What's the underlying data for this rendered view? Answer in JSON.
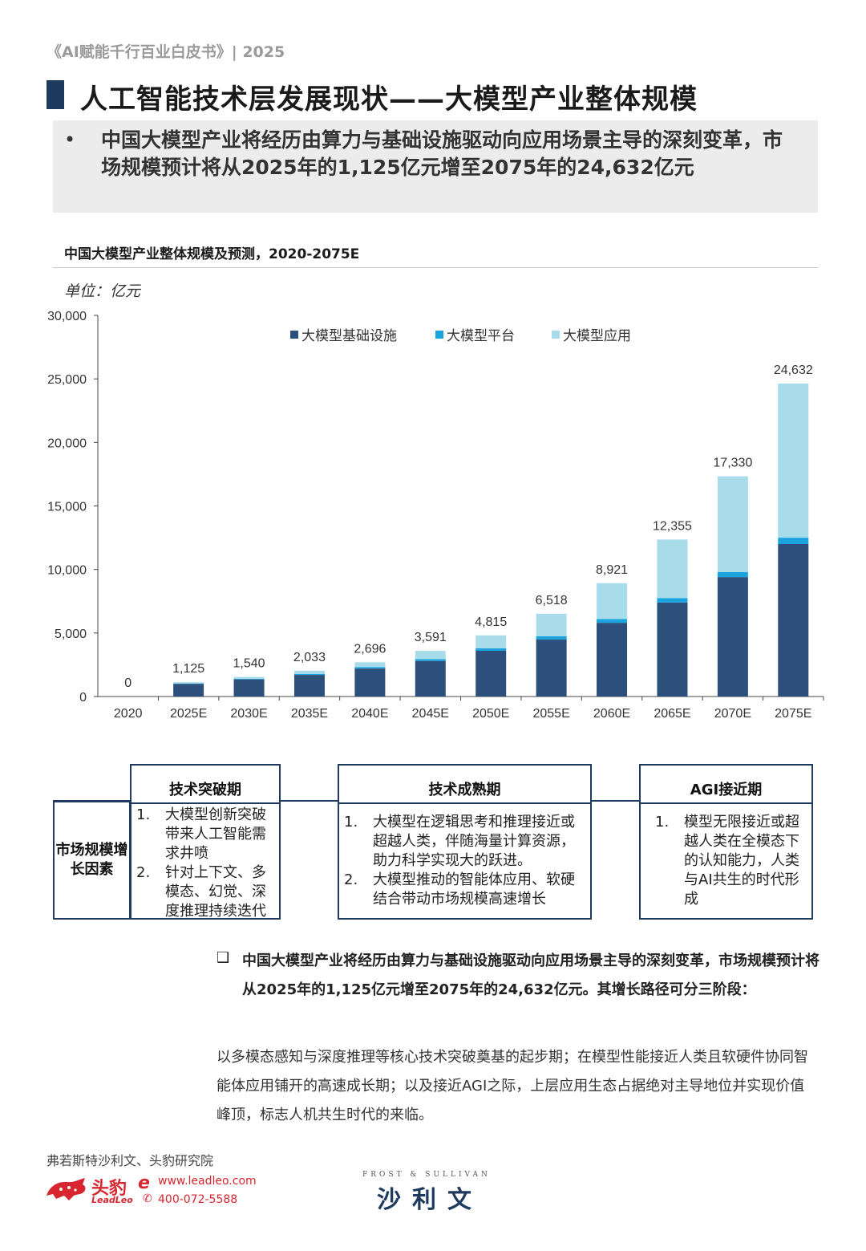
{
  "header": {
    "report": "《AI赋能千行百业白皮书》| 2025"
  },
  "title": "人工智能技术层发展现状——大模型产业整体规模",
  "summary": {
    "bullet": "•",
    "text": "中国大模型产业将经历由算力与基础设施驱动向应用场景主导的深刻变革，市场规模预计将从2025年的1,125亿元增至2075年的24,632亿元"
  },
  "chart": {
    "heading": "中国大模型产业整体规模及预测，2020-2075E",
    "unit": "单位：亿元"
  },
  "chart_data": {
    "type": "bar",
    "stacked": true,
    "title": "中国大模型产业整体规模及预测，2020-2075E",
    "ylabel": "单位：亿元",
    "ylim": [
      0,
      30000
    ],
    "yticks": [
      0,
      5000,
      10000,
      15000,
      20000,
      25000,
      30000
    ],
    "ytick_labels": [
      "0",
      "5,000",
      "10,000",
      "15,000",
      "20,000",
      "25,000",
      "30,000"
    ],
    "categories": [
      "2020",
      "2025E",
      "2030E",
      "2035E",
      "2040E",
      "2045E",
      "2050E",
      "2055E",
      "2060E",
      "2065E",
      "2070E",
      "2075E"
    ],
    "series": [
      {
        "name": "大模型基础设施",
        "color": "#2d4f7c",
        "values": [
          0,
          1000,
          1350,
          1700,
          2200,
          2800,
          3600,
          4500,
          5800,
          7400,
          9400,
          12000
        ]
      },
      {
        "name": "大模型平台",
        "color": "#1aa3dc",
        "values": [
          0,
          30,
          50,
          80,
          120,
          150,
          200,
          250,
          300,
          350,
          400,
          500
        ]
      },
      {
        "name": "大模型应用",
        "color": "#a8dcea",
        "values": [
          0,
          95,
          140,
          253,
          376,
          641,
          1015,
          1768,
          2821,
          4605,
          7530,
          12132
        ]
      }
    ],
    "totals": [
      0,
      1125,
      1540,
      2033,
      2696,
      3591,
      4815,
      6518,
      8921,
      12355,
      17330,
      24632
    ],
    "total_labels": [
      "0",
      "1,125",
      "1,540",
      "2,033",
      "2,696",
      "3,591",
      "4,815",
      "6,518",
      "8,921",
      "12,355",
      "17,330",
      "24,632"
    ],
    "legend": "top-right",
    "grid": false
  },
  "phases": {
    "side_label": "市场规模增长因素",
    "items": [
      {
        "title": "技术突破期",
        "points": [
          {
            "num": "1.",
            "text": "大模型创新突破带来人工智能需求井喷"
          },
          {
            "num": "2.",
            "text": "针对上下文、多模态、幻觉、深度推理持续迭代"
          }
        ]
      },
      {
        "title": "技术成熟期",
        "points": [
          {
            "num": "1.",
            "text": "大模型在逻辑思考和推理接近或超越人类，伴随海量计算资源，助力科学实现大的跃进。"
          },
          {
            "num": "2.",
            "text": "大模型推动的智能体应用、软硬结合带动市场规模高速增长"
          }
        ]
      },
      {
        "title": "AGI接近期",
        "points": [
          {
            "num": "1.",
            "text": "模型无限接近或超越人类在全模态下的认知能力，人类与AI共生的时代形成"
          }
        ]
      }
    ]
  },
  "conclusion": {
    "mark": "❑",
    "text": "中国大模型产业将经历由算力与基础设施驱动向应用场景主导的深刻变革，市场规模预计将从2025年的1,125亿元增至2075年的24,632亿元。其增长路径可分三阶段：",
    "detail": "以多模态感知与深度推理等核心技术突破奠基的起步期；在模型性能接近人类且软硬件协同智能体应用铺开的高速成长期；以及接近AGI之际，上层应用生态占据绝对主导地位并实现价值峰顶，标志人机共生时代的来临。"
  },
  "footer": {
    "source": "弗若斯特沙利文、头豹研究院",
    "leadleo_cn": "头豹",
    "leadleo_en": "LeadLeo",
    "url": "www.leadleo.com",
    "phone": "400-072-5588",
    "fs_en": "FROST & SULLIVAN",
    "fs_cn": "沙利文"
  },
  "colors": {
    "navy": "#1f3a5f",
    "accent_red": "#d7262f"
  }
}
